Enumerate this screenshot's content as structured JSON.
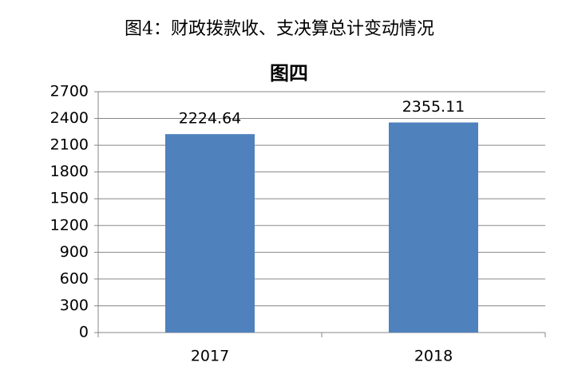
{
  "chart_data": {
    "type": "bar",
    "caption": "图4：财政拨款收、支决算总计变动情况",
    "title": "图四",
    "categories": [
      "2017",
      "2018"
    ],
    "values": [
      2224.64,
      2355.11
    ],
    "color": "#4f81bd",
    "ylim": [
      0,
      2700
    ],
    "yticks": [
      0,
      300,
      600,
      900,
      1200,
      1500,
      1800,
      2100,
      2400,
      2700
    ],
    "grid": true,
    "data_labels": true
  }
}
